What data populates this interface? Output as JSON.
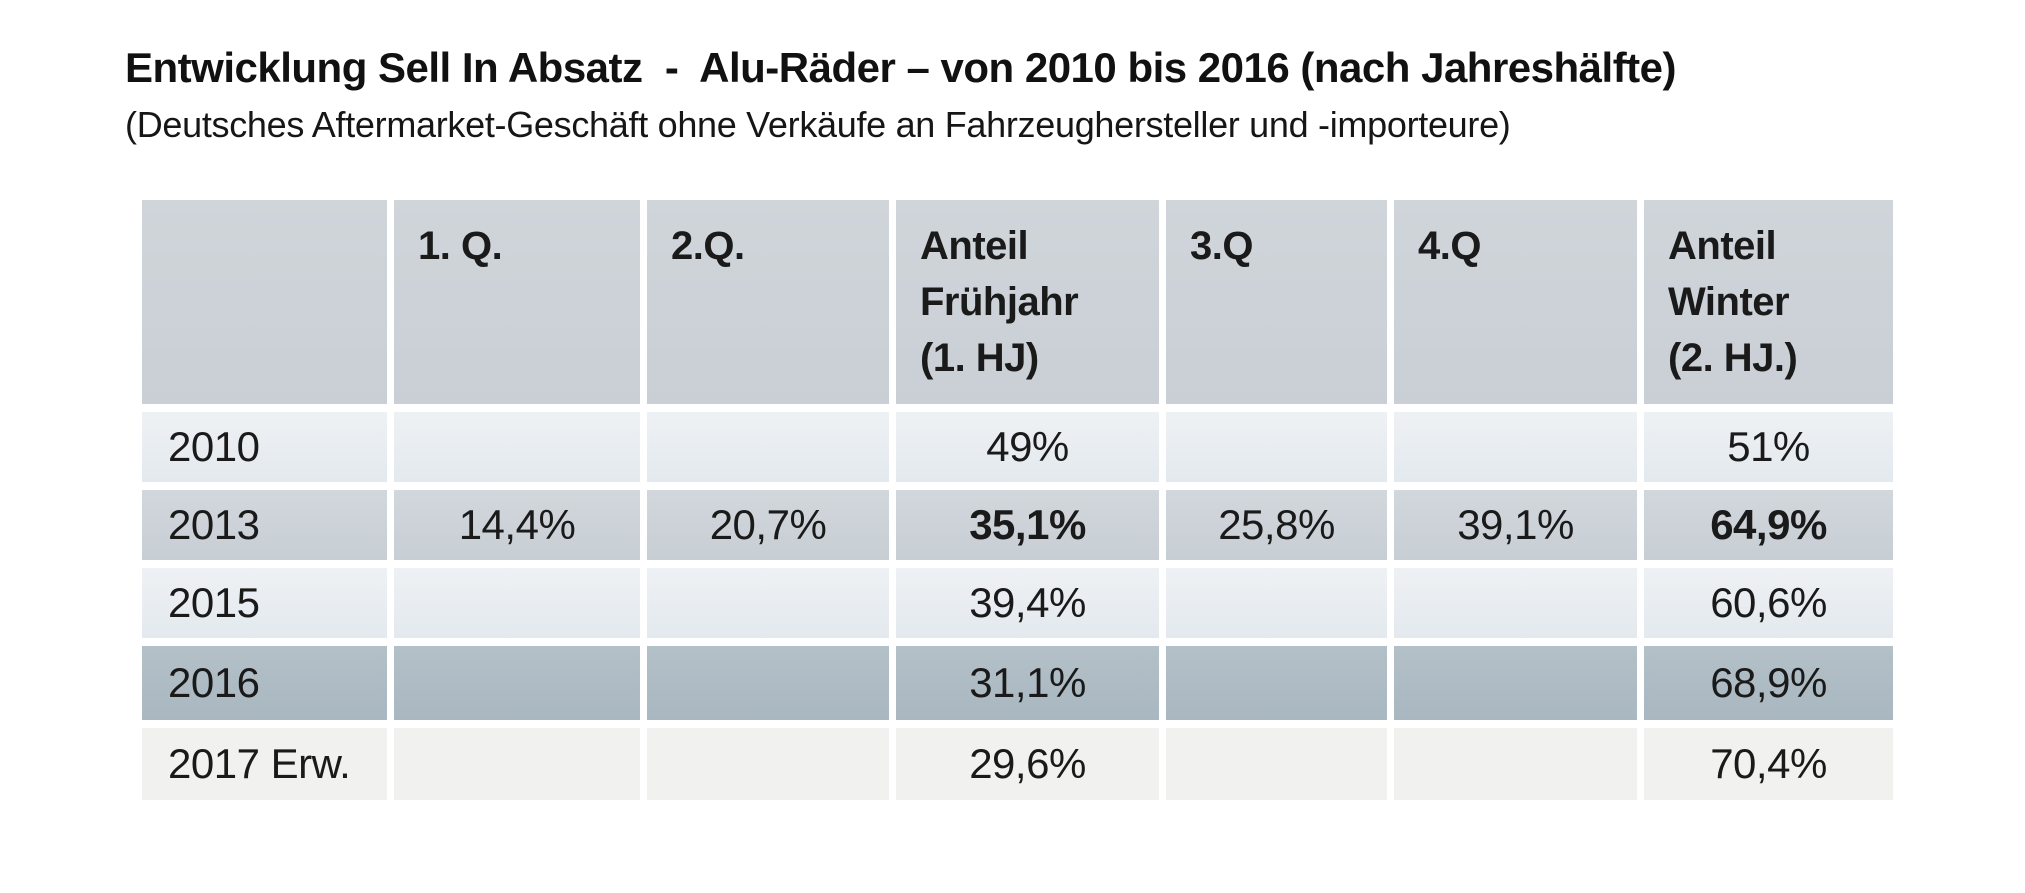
{
  "page": {
    "title": "Entwicklung Sell In Absatz  -  Alu-Räder – von 2010 bis 2016 (nach Jahreshälfte)",
    "subtitle": "(Deutsches Aftermarket-Geschäft ohne Verkäufe an Fahrzeughersteller und -importeure)"
  },
  "colors": {
    "header_bg": "#cdd3d9",
    "row_light_bg": "#e8edf1",
    "row_medium_bg": "#ccd2d8",
    "row_dark_bg": "#aebbc4",
    "row_neutral_bg": "#f1f1ef",
    "text": "#1a1a1a",
    "background": "#ffffff"
  },
  "table": {
    "header": [
      {
        "l1": "",
        "l2": "",
        "l3": ""
      },
      {
        "l1": "1. Q.",
        "l2": "",
        "l3": ""
      },
      {
        "l1": "2.Q.",
        "l2": "",
        "l3": ""
      },
      {
        "l1": "Anteil",
        "l2": "Frühjahr",
        "l3": "(1. HJ)"
      },
      {
        "l1": "3.Q",
        "l2": "",
        "l3": ""
      },
      {
        "l1": "4.Q",
        "l2": "",
        "l3": ""
      },
      {
        "l1": "Anteil",
        "l2": "Winter",
        "l3": "(2. HJ.)"
      }
    ],
    "rows": [
      {
        "label": "2010",
        "c1": "",
        "c2": "",
        "c3": "49%",
        "c4": "",
        "c5": "",
        "c6": "51%"
      },
      {
        "label": "2013",
        "c1": "14,4%",
        "c2": "20,7%",
        "c3": "35,1%",
        "c4": "25,8%",
        "c5": "39,1%",
        "c6": "64,9%"
      },
      {
        "label": "2015",
        "c1": "",
        "c2": "",
        "c3": "39,4%",
        "c4": "",
        "c5": "",
        "c6": "60,6%"
      },
      {
        "label": "2016",
        "c1": "",
        "c2": "",
        "c3": "31,1%",
        "c4": "",
        "c5": "",
        "c6": "68,9%"
      },
      {
        "label": "2017 Erw.",
        "c1": "",
        "c2": "",
        "c3": "29,6%",
        "c4": "",
        "c5": "",
        "c6": "70,4%"
      }
    ]
  },
  "chart_data": {
    "type": "table",
    "title": "Entwicklung Sell In Absatz - Alu-Räder – von 2010 bis 2016 (nach Jahreshälfte)",
    "subtitle": "(Deutsches Aftermarket-Geschäft ohne Verkäufe an Fahrzeughersteller und -importeure)",
    "columns": [
      "",
      "1. Q.",
      "2.Q.",
      "Anteil Frühjahr (1. HJ)",
      "3.Q",
      "4.Q",
      "Anteil Winter (2. HJ.)"
    ],
    "rows": [
      [
        "2010",
        "",
        "",
        "49%",
        "",
        "",
        "51%"
      ],
      [
        "2013",
        "14,4%",
        "20,7%",
        "35,1%",
        "25,8%",
        "39,1%",
        "64,9%"
      ],
      [
        "2015",
        "",
        "",
        "39,4%",
        "",
        "",
        "60,6%"
      ],
      [
        "2016",
        "",
        "",
        "31,1%",
        "",
        "",
        "68,9%"
      ],
      [
        "2017 Erw.",
        "",
        "",
        "29,6%",
        "",
        "",
        "70,4%"
      ]
    ],
    "notes": "Values as shown; bold emphasis on 2013 row columns 'Anteil Frühjahr' (35,1%) and 'Anteil Winter' (64,9%)."
  }
}
